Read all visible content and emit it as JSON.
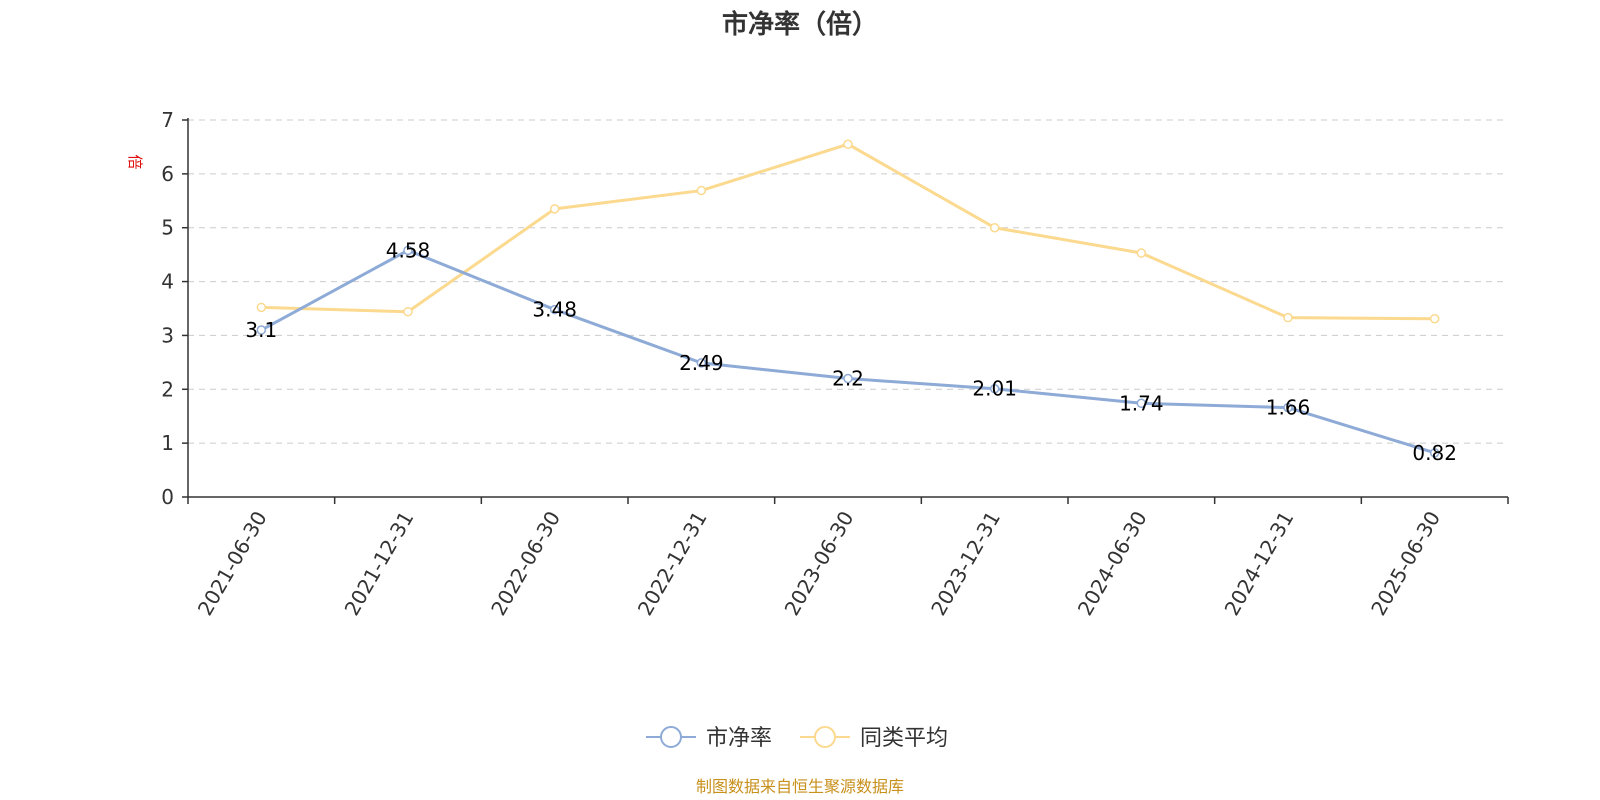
{
  "chart_data": {
    "type": "line",
    "title": "市净率（倍）",
    "ylabel": "倍",
    "xlabel": "",
    "ylim": [
      0,
      7
    ],
    "yticks": [
      0,
      1,
      2,
      3,
      4,
      5,
      6,
      7
    ],
    "grid": true,
    "legend_position": "bottom-center",
    "categories": [
      "2021-06-30",
      "2021-12-31",
      "2022-06-30",
      "2022-12-31",
      "2023-06-30",
      "2023-12-31",
      "2024-06-30",
      "2024-12-31",
      "2025-06-30"
    ],
    "series": [
      {
        "name": "市净率",
        "color": "#8eaad6",
        "show_labels": true,
        "values": [
          3.1,
          4.58,
          3.48,
          2.49,
          2.2,
          2.01,
          1.74,
          1.66,
          0.82
        ]
      },
      {
        "name": "同类平均",
        "color": "#fbd98f",
        "show_labels": false,
        "values": [
          3.52,
          3.44,
          5.35,
          5.69,
          6.55,
          5.0,
          4.53,
          3.33,
          3.31
        ]
      }
    ]
  },
  "source": "制图数据来自恒生聚源数据库"
}
